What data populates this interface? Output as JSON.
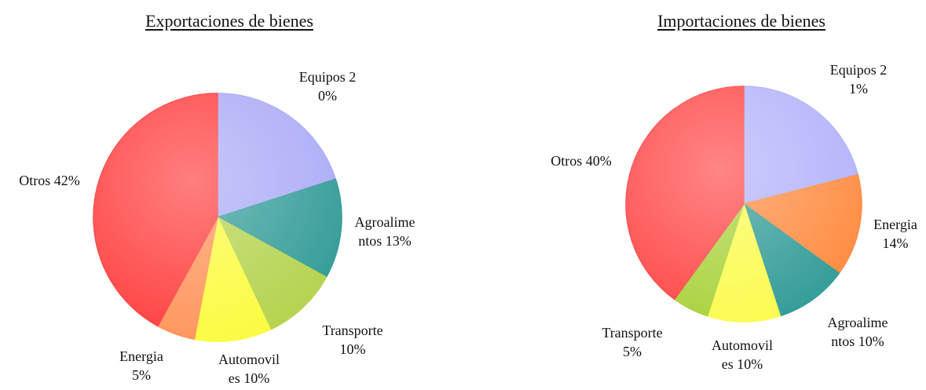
{
  "chart_data": [
    {
      "type": "pie",
      "title": "Exportaciones de bienes",
      "categories": [
        "Equipos",
        "Agroalimentos",
        "Transporte",
        "Automoviles",
        "Energia",
        "Otros"
      ],
      "values": [
        20,
        13,
        10,
        10,
        5,
        42
      ],
      "value_labels": [
        "20%",
        "13%",
        "10%",
        "10%",
        "5%",
        "42%"
      ],
      "colors": [
        "#a9a9f7",
        "#2f9a95",
        "#b3d24a",
        "#fbfb3c",
        "#ff9257",
        "#ff3a3a"
      ]
    },
    {
      "type": "pie",
      "title": "Importaciones de bienes",
      "categories": [
        "Equipos",
        "Energia",
        "Agroalimentos",
        "Automoviles",
        "Transporte",
        "Otros"
      ],
      "values": [
        21,
        14,
        10,
        10,
        5,
        40
      ],
      "value_labels": [
        "21%",
        "14%",
        "10%",
        "10%",
        "5%",
        "40%"
      ],
      "colors": [
        "#b1b1fb",
        "#ff8a3e",
        "#2f9a95",
        "#fbfb4c",
        "#a8d23a",
        "#ff4444"
      ]
    }
  ]
}
